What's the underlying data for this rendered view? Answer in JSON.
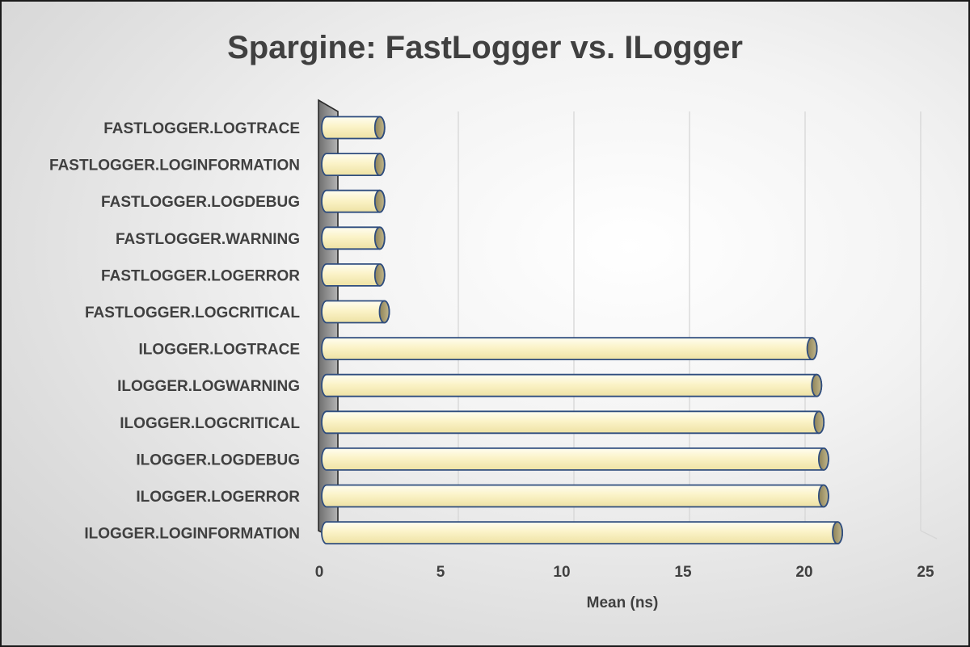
{
  "chart_data": {
    "type": "bar",
    "orientation": "horizontal",
    "title": "Spargine: FastLogger vs. ILogger",
    "xlabel": "Mean (ns)",
    "ylabel": "",
    "xlim": [
      0,
      25
    ],
    "xticks": [
      "0",
      "5",
      "10",
      "15",
      "20",
      "25"
    ],
    "grid": true,
    "legend": "none",
    "categories": [
      "FASTLOGGER.LOGTRACE",
      "FASTLOGGER.LOGINFORMATION",
      "FASTLOGGER.LOGDEBUG",
      "FASTLOGGER.WARNING",
      "FASTLOGGER.LOGERROR",
      "FASTLOGGER.LOGCRITICAL",
      "ILOGGER.LOGTRACE",
      "ILOGGER.LOGWARNING",
      "ILOGGER.LOGCRITICAL",
      "ILOGGER.LOGDEBUG",
      "ILOGGER.LOGERROR",
      "ILOGGER.LOGINFORMATION"
    ],
    "values": [
      2.3,
      2.3,
      2.3,
      2.3,
      2.3,
      2.5,
      21.0,
      21.2,
      21.3,
      21.5,
      21.5,
      22.1
    ],
    "colors": {
      "bar_fill_light": "#fffdf0",
      "bar_fill_dark": "#eee2a4",
      "bar_outline": "#2f4d7e",
      "bar_cap": "#a89c72",
      "wall": "#9a9a9a",
      "gridline": "#d6d6d6",
      "text": "#404040"
    }
  }
}
